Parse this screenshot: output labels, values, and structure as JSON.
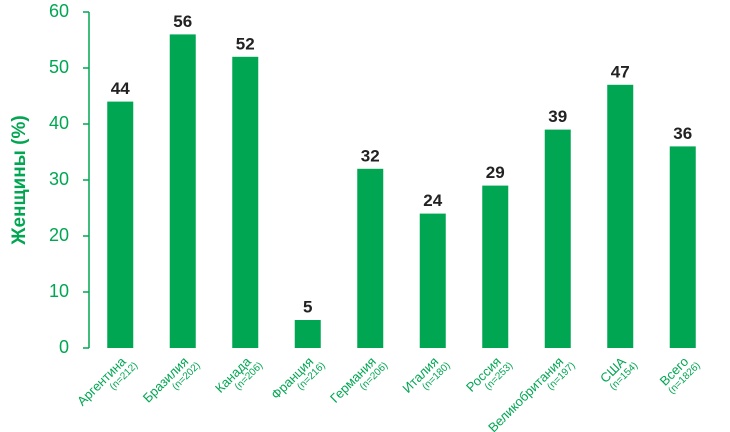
{
  "chart_data": {
    "type": "bar",
    "y_label": "Женщины (%)",
    "categories": [
      "Аргентина",
      "Бразилия",
      "Канада",
      "Франция",
      "Германия",
      "Италия",
      "Россия",
      "Великобритания",
      "США",
      "Всего"
    ],
    "category_notes": [
      "(n=212)",
      "(n=202)",
      "(n=206)",
      "(n=216)",
      "(n=206)",
      "(n=180)",
      "(n=253)",
      "(n=197)",
      "(n=154)",
      "(n=1826)"
    ],
    "values": [
      44,
      56,
      52,
      5,
      32,
      24,
      29,
      39,
      47,
      36
    ],
    "color": "#00a651",
    "ylim": [
      0,
      60
    ],
    "yticks": [
      0,
      10,
      20,
      30,
      40,
      50,
      60
    ],
    "grid": false
  }
}
